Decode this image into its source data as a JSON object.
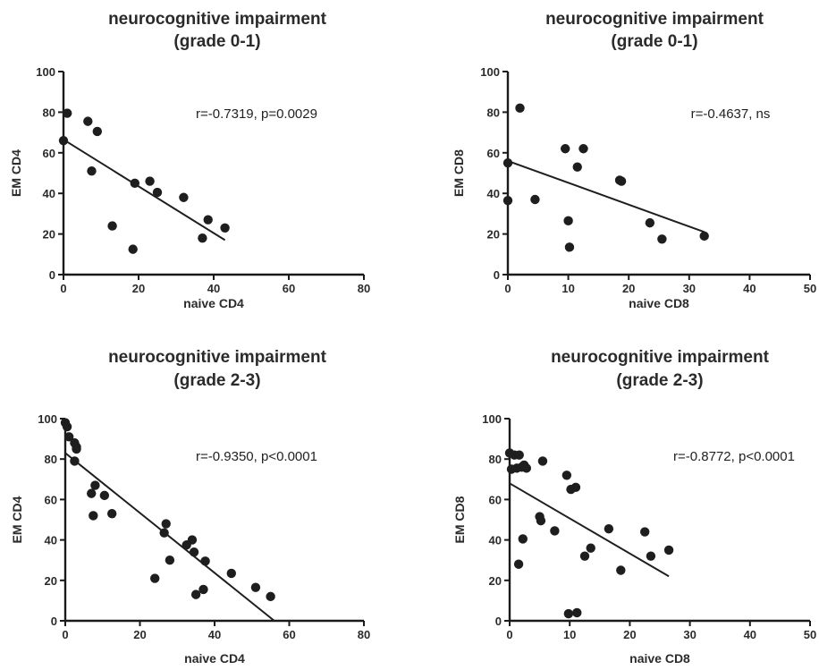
{
  "chart_data": [
    {
      "type": "scatter",
      "title": "neurocognitive impairment",
      "subtitle": "(grade 0-1)",
      "xlabel": "naive CD4",
      "ylabel": "EM CD4",
      "xlim": [
        0,
        80
      ],
      "ylim": [
        0,
        100
      ],
      "xticks": [
        0,
        20,
        40,
        60,
        80
      ],
      "yticks": [
        0,
        20,
        40,
        60,
        80,
        100
      ],
      "grid": false,
      "annotation": "r=-0.7319, p=0.0029",
      "series": [
        {
          "x": [
            0,
            1,
            6.5,
            7.5,
            9,
            13,
            18.5,
            19,
            23,
            25,
            32,
            37,
            38.5,
            43
          ],
          "y": [
            66,
            79.5,
            75.5,
            51,
            70.5,
            24,
            12.5,
            45,
            46,
            40.5,
            38,
            18,
            27,
            23
          ],
          "fit": {
            "x": [
              0,
              43
            ],
            "y": [
              66.5,
              17
            ]
          }
        }
      ]
    },
    {
      "type": "scatter",
      "title": "neurocognitive impairment",
      "subtitle": "(grade 0-1)",
      "xlabel": "naive CD8",
      "ylabel": "EM CD8",
      "xlim": [
        0,
        50
      ],
      "ylim": [
        0,
        100
      ],
      "xticks": [
        0,
        10,
        20,
        30,
        40,
        50
      ],
      "yticks": [
        0,
        20,
        40,
        60,
        80,
        100
      ],
      "grid": false,
      "annotation": "r=-0.4637, ns",
      "series": [
        {
          "x": [
            0,
            0,
            2,
            4.5,
            9.5,
            10,
            10.2,
            11.5,
            12.5,
            18.5,
            18.8,
            23.5,
            25.5,
            32.5
          ],
          "y": [
            55,
            36.5,
            82,
            37,
            62,
            26.5,
            13.5,
            53,
            62,
            46.5,
            46,
            25.5,
            17.5,
            19
          ],
          "fit": {
            "x": [
              0,
              32.5
            ],
            "y": [
              56,
              21
            ]
          }
        }
      ]
    },
    {
      "type": "scatter",
      "title": "neurocognitive impairment",
      "subtitle": "(grade 2-3)",
      "xlabel": "naive CD4",
      "ylabel": "EM CD4",
      "xlim": [
        0,
        80
      ],
      "ylim": [
        0,
        100
      ],
      "xticks": [
        0,
        20,
        40,
        60,
        80
      ],
      "yticks": [
        0,
        20,
        40,
        60,
        80,
        100
      ],
      "grid": false,
      "annotation": "r=-0.9350, p<0.0001",
      "series": [
        {
          "x": [
            0,
            0.5,
            1,
            2.5,
            3,
            3,
            2.5,
            7,
            7.5,
            8,
            10.5,
            12.5,
            24,
            26.5,
            27,
            28,
            32.5,
            34,
            34.5,
            35,
            37,
            37.5,
            44.5,
            51,
            55
          ],
          "y": [
            98,
            96,
            91,
            88,
            86,
            85,
            79,
            63,
            52,
            67,
            62,
            53,
            21,
            43.5,
            48,
            30,
            37.5,
            40,
            34,
            13,
            15.5,
            29.5,
            23.5,
            16.5,
            12
          ],
          "fit": {
            "x": [
              0,
              56
            ],
            "y": [
              83,
              0
            ]
          }
        }
      ]
    },
    {
      "type": "scatter",
      "title": "neurocognitive impairment",
      "subtitle": "(grade 2-3)",
      "xlabel": "naive CD8",
      "ylabel": "EM CD8",
      "xlim": [
        0,
        50
      ],
      "ylim": [
        0,
        100
      ],
      "xticks": [
        0,
        10,
        20,
        30,
        40,
        50
      ],
      "yticks": [
        0,
        20,
        40,
        60,
        80,
        100
      ],
      "grid": false,
      "annotation": "r=-0.8772,  p<0.0001",
      "series": [
        {
          "x": [
            0,
            0.3,
            0.8,
            1.2,
            1.6,
            2,
            2.4,
            2.8,
            1.5,
            2.2,
            5,
            5.2,
            5.5,
            7.5,
            9.5,
            10.2,
            11,
            9.8,
            11.2,
            12.5,
            13.5,
            16.5,
            18.5,
            22.5,
            23.5,
            26.5
          ],
          "y": [
            83,
            75,
            82,
            75.5,
            82,
            76,
            77,
            75.5,
            28,
            40.5,
            51.5,
            49.5,
            79,
            44.5,
            72,
            65,
            66,
            3.5,
            4,
            32,
            36,
            45.5,
            25,
            44,
            32,
            35
          ],
          "fit": {
            "x": [
              0,
              26.5
            ],
            "y": [
              68,
              22
            ]
          }
        }
      ]
    }
  ]
}
